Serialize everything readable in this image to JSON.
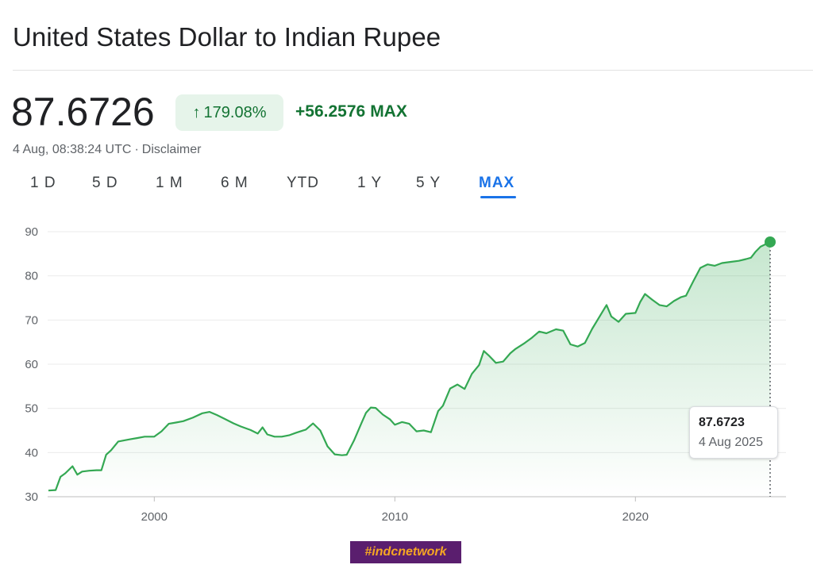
{
  "header": {
    "title": "United States Dollar to Indian Rupee"
  },
  "quote": {
    "price": "87.6726",
    "change_arrow": "↑",
    "change_pct": "179.08%",
    "change_abs": "+56.2576",
    "change_span": "MAX",
    "timestamp": "4 Aug, 08:38:24 UTC",
    "separator": "·",
    "disclaimer": "Disclaimer"
  },
  "tabs": [
    {
      "label": "1 D"
    },
    {
      "label": "5 D"
    },
    {
      "label": "1 M"
    },
    {
      "label": "6 M"
    },
    {
      "label": "YTD"
    },
    {
      "label": "1 Y"
    },
    {
      "label": "5 Y"
    },
    {
      "label": "MAX",
      "active": true
    }
  ],
  "tooltip": {
    "value": "87.6723",
    "date": "4 Aug 2025"
  },
  "watermark": "#indcnetwork",
  "colors": {
    "line": "#34a853",
    "positive_text": "#137333",
    "positive_bg": "#e6f4ea",
    "active_tab": "#1a73e8",
    "grid": "#ebebeb"
  },
  "chart_data": {
    "type": "area",
    "title": "",
    "xlabel": "",
    "ylabel": "",
    "ylim": [
      30,
      90
    ],
    "yticks": [
      "30",
      "40",
      "50",
      "60",
      "70",
      "80",
      "90"
    ],
    "xticks": [
      "2000",
      "2010",
      "2020"
    ],
    "grid": "horizontal",
    "series": [
      {
        "x": [
          1995.6,
          1995.9,
          1996.1,
          1996.3,
          1996.6,
          1996.8,
          1997.0,
          1997.3,
          1997.6,
          1997.8,
          1998.0,
          1998.2,
          1998.5,
          1998.8,
          1999.0,
          1999.3,
          1999.6,
          2000.0,
          2000.3,
          2000.6,
          2000.9,
          2001.2,
          2001.6,
          2002.0,
          2002.3,
          2002.6,
          2002.9,
          2003.3,
          2003.6,
          2004.0,
          2004.3,
          2004.5,
          2004.7,
          2005.0,
          2005.3,
          2005.6,
          2005.9,
          2006.3,
          2006.6,
          2006.9,
          2007.2,
          2007.5,
          2007.8,
          2008.0,
          2008.3,
          2008.6,
          2008.8,
          2009.0,
          2009.2,
          2009.5,
          2009.8,
          2010.0,
          2010.3,
          2010.6,
          2010.9,
          2011.2,
          2011.5,
          2011.8,
          2012.0,
          2012.3,
          2012.6,
          2012.9,
          2013.2,
          2013.5,
          2013.7,
          2013.9,
          2014.2,
          2014.5,
          2014.8,
          2015.0,
          2015.4,
          2015.7,
          2016.0,
          2016.3,
          2016.7,
          2017.0,
          2017.3,
          2017.6,
          2017.9,
          2018.2,
          2018.5,
          2018.8,
          2019.0,
          2019.3,
          2019.6,
          2020.0,
          2020.2,
          2020.4,
          2020.7,
          2021.0,
          2021.3,
          2021.6,
          2021.9,
          2022.1,
          2022.4,
          2022.7,
          2023.0,
          2023.3,
          2023.6,
          2024.0,
          2024.3,
          2024.6,
          2024.8,
          2025.0,
          2025.2,
          2025.6
        ],
        "y": [
          31.4,
          31.5,
          34.5,
          35.3,
          36.9,
          35.0,
          35.7,
          35.9,
          36.0,
          36.0,
          39.5,
          40.5,
          42.5,
          42.8,
          43.0,
          43.3,
          43.6,
          43.6,
          44.8,
          46.5,
          46.8,
          47.1,
          47.9,
          48.9,
          49.2,
          48.5,
          47.7,
          46.6,
          45.9,
          45.1,
          44.3,
          45.7,
          44.1,
          43.6,
          43.6,
          43.9,
          44.5,
          45.2,
          46.6,
          45.0,
          41.4,
          39.6,
          39.4,
          39.5,
          42.7,
          46.5,
          49.0,
          50.2,
          50.1,
          48.6,
          47.5,
          46.3,
          46.9,
          46.5,
          44.8,
          45.0,
          44.6,
          49.4,
          50.6,
          54.5,
          55.4,
          54.4,
          57.8,
          59.8,
          63.0,
          62.0,
          60.3,
          60.6,
          62.5,
          63.4,
          64.8,
          66.0,
          67.4,
          67.0,
          67.9,
          67.6,
          64.5,
          64.0,
          64.8,
          68.0,
          70.7,
          73.4,
          70.8,
          69.6,
          71.4,
          71.6,
          74.1,
          75.9,
          74.6,
          73.4,
          73.1,
          74.3,
          75.2,
          75.5,
          78.7,
          81.8,
          82.6,
          82.3,
          82.9,
          83.2,
          83.4,
          83.8,
          84.1,
          85.5,
          86.6,
          87.67
        ]
      }
    ]
  }
}
